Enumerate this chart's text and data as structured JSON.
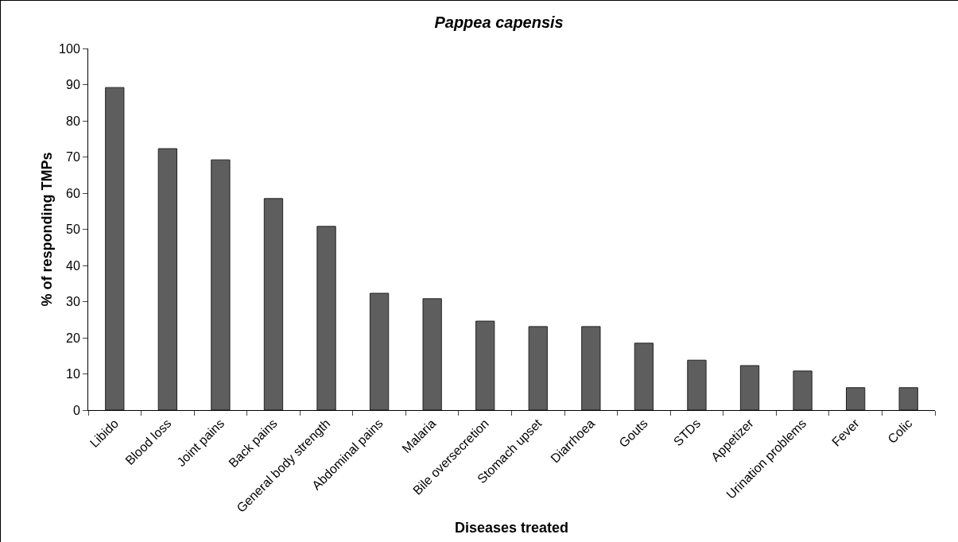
{
  "chart_data": {
    "type": "bar",
    "title": "Pappea capensis",
    "xlabel": "Diseases treated",
    "ylabel": "% of responding TMPs",
    "categories": [
      "Libido",
      "Blood loss",
      "Joint pains",
      "Back pains",
      "General body strength",
      "Abdominal pains",
      "Malaria",
      "Bile oversecretion",
      "Stomach upset",
      "Diarrhoea",
      "Gouts",
      "STDs",
      "Appetizer",
      "Urination problems",
      "Fever",
      "Colic"
    ],
    "values": [
      89.2,
      72.3,
      69.2,
      58.5,
      50.8,
      32.3,
      30.8,
      24.6,
      23.1,
      23.1,
      18.5,
      13.8,
      12.3,
      10.8,
      6.2,
      6.2
    ],
    "color": "#5e5e5e",
    "ylim": [
      0,
      100
    ],
    "yticks": [
      0,
      10,
      20,
      30,
      40,
      50,
      60,
      70,
      80,
      90,
      100
    ],
    "grid": false
  }
}
